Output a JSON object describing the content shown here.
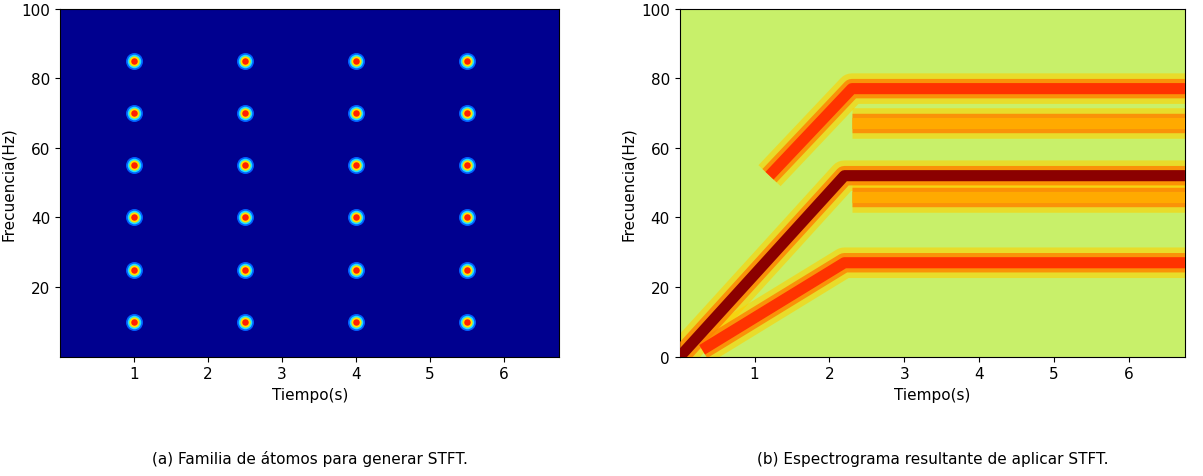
{
  "chart_data": [
    {
      "type": "scatter",
      "caption": "(a) Familia de átomos para generar STFT.",
      "x_label": "Tiempo(s)",
      "y_label": "Frecuencia(Hz)",
      "x": [
        1,
        1,
        1,
        1,
        1,
        1,
        2.5,
        2.5,
        2.5,
        2.5,
        2.5,
        2.5,
        4,
        4,
        4,
        4,
        4,
        4,
        5.5,
        5.5,
        5.5,
        5.5,
        5.5,
        5.5
      ],
      "y": [
        10,
        25,
        40,
        55,
        70,
        85,
        10,
        25,
        40,
        55,
        70,
        85,
        10,
        25,
        40,
        55,
        70,
        85,
        10,
        25,
        40,
        55,
        70,
        85
      ],
      "marker": "o",
      "xlim": [
        0,
        6.75
      ],
      "xticks": [
        1,
        2,
        3,
        4,
        5,
        6
      ],
      "ylim": [
        0,
        100
      ],
      "yticks": [
        20,
        40,
        60,
        80,
        100
      ]
    },
    {
      "type": "line",
      "caption": "(b) Espectrograma resultante de aplicar STFT.",
      "x_label": "Tiempo(s)",
      "y_label": "Frecuencia(Hz)",
      "series": [
        {
          "x": [
            0,
            2.2,
            6.75
          ],
          "y": [
            0,
            52,
            52
          ],
          "color": "#8b0000"
        },
        {
          "x": [
            1.2,
            2.3,
            6.75
          ],
          "y": [
            52,
            77,
            77
          ],
          "color": "#ff3300"
        },
        {
          "x": [
            0.3,
            2.2,
            6.75
          ],
          "y": [
            2,
            27,
            27
          ],
          "color": "#ff3300"
        },
        {
          "x": [
            2.3,
            6.75
          ],
          "y": [
            46,
            46
          ],
          "color": "#ffaa00"
        },
        {
          "x": [
            2.3,
            6.75
          ],
          "y": [
            67,
            67
          ],
          "color": "#ffaa00"
        }
      ],
      "xlim": [
        0,
        6.75
      ],
      "xticks": [
        1,
        2,
        3,
        4,
        5,
        6
      ],
      "ylim": [
        0,
        100
      ],
      "yticks": [
        0,
        20,
        40,
        60,
        80,
        100
      ]
    }
  ]
}
